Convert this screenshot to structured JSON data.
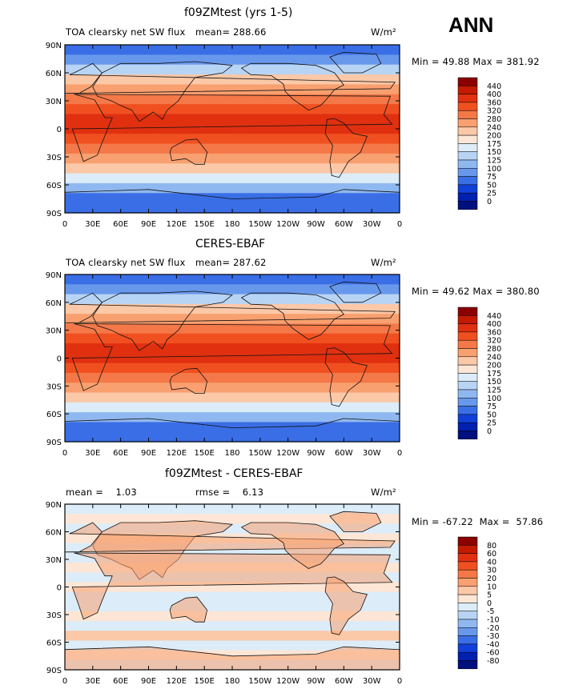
{
  "season": "ANN",
  "chart_data": [
    {
      "type": "heatmap",
      "title": "f09ZMtest (yrs 1-5)",
      "field": "TOA clearsky net SW flux",
      "units": "W/m²",
      "mean_label": "mean=",
      "mean": "288.66",
      "min_label": "Min =",
      "min": "49.88",
      "max_label": "Max =",
      "max": "381.92",
      "xlim": [
        0,
        360
      ],
      "ylim": [
        -90,
        90
      ],
      "xticks": [
        "0",
        "30E",
        "60E",
        "90E",
        "120E",
        "150E",
        "180",
        "150W",
        "120W",
        "90W",
        "60W",
        "30W",
        "0"
      ],
      "yticks": [
        "90N",
        "60N",
        "30N",
        "0",
        "30S",
        "60S",
        "90S"
      ],
      "colorbar_levels": [
        "440",
        "400",
        "360",
        "320",
        "280",
        "240",
        "200",
        "175",
        "150",
        "125",
        "100",
        "75",
        "50",
        "25",
        "0"
      ],
      "colorbar_colors": [
        "#8b0000",
        "#c41a00",
        "#e03010",
        "#f05020",
        "#f47848",
        "#f8a070",
        "#fbc8a8",
        "#fde6d6",
        "#dcecf8",
        "#b8d4f4",
        "#90b8f0",
        "#6898ec",
        "#3a6ee6",
        "#1040d8",
        "#0020b0",
        "#00107e"
      ]
    },
    {
      "type": "heatmap",
      "title": "CERES-EBAF",
      "field": "TOA clearsky net SW flux",
      "units": "W/m²",
      "mean_label": "mean=",
      "mean": "287.62",
      "min_label": "Min =",
      "min": "49.62",
      "max_label": "Max =",
      "max": "380.80",
      "xlim": [
        0,
        360
      ],
      "ylim": [
        -90,
        90
      ],
      "xticks": [
        "0",
        "30E",
        "60E",
        "90E",
        "120E",
        "150E",
        "180",
        "150W",
        "120W",
        "90W",
        "60W",
        "30W",
        "0"
      ],
      "yticks": [
        "90N",
        "60N",
        "30N",
        "0",
        "30S",
        "60S",
        "90S"
      ],
      "colorbar_levels": [
        "440",
        "400",
        "360",
        "320",
        "280",
        "240",
        "200",
        "175",
        "150",
        "125",
        "100",
        "75",
        "50",
        "25",
        "0"
      ],
      "colorbar_colors": [
        "#8b0000",
        "#c41a00",
        "#e03010",
        "#f05020",
        "#f47848",
        "#f8a070",
        "#fbc8a8",
        "#fde6d6",
        "#dcecf8",
        "#b8d4f4",
        "#90b8f0",
        "#6898ec",
        "#3a6ee6",
        "#1040d8",
        "#0020b0",
        "#00107e"
      ]
    },
    {
      "type": "heatmap",
      "title": "f09ZMtest - CERES-EBAF",
      "units": "W/m²",
      "mean_label": "mean =",
      "mean": "1.03",
      "rmse_label": "rmse =",
      "rmse": "6.13",
      "min_label": "Min =",
      "min": "-67.22",
      "max_label": "Max =",
      "max": "57.86",
      "xlim": [
        0,
        360
      ],
      "ylim": [
        -90,
        90
      ],
      "xticks": [
        "0",
        "30E",
        "60E",
        "90E",
        "120E",
        "150E",
        "180",
        "150W",
        "120W",
        "90W",
        "60W",
        "30W",
        "0"
      ],
      "yticks": [
        "90N",
        "60N",
        "30N",
        "0",
        "30S",
        "60S",
        "90S"
      ],
      "colorbar_levels": [
        "80",
        "60",
        "40",
        "30",
        "20",
        "10",
        "5",
        "0",
        "-5",
        "-10",
        "-20",
        "-30",
        "-40",
        "-60",
        "-80"
      ],
      "colorbar_colors": [
        "#8b0000",
        "#c41a00",
        "#e03010",
        "#f05020",
        "#f47848",
        "#f8a070",
        "#fbc8a8",
        "#fde6d6",
        "#dcecf8",
        "#b8d4f4",
        "#90b8f0",
        "#6898ec",
        "#3a6ee6",
        "#1040d8",
        "#0020b0",
        "#00107e"
      ]
    }
  ]
}
